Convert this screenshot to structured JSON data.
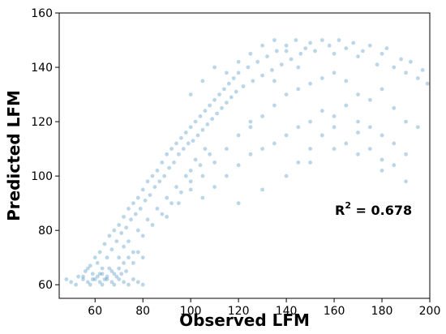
{
  "chart_data": {
    "type": "scatter",
    "title": "",
    "xlabel": "Observed LFM",
    "ylabel": "Predicted LFM",
    "xlim": [
      45,
      200
    ],
    "ylim": [
      55,
      160
    ],
    "x_ticks": [
      60,
      80,
      100,
      120,
      140,
      160,
      180,
      200
    ],
    "y_ticks": [
      60,
      80,
      100,
      120,
      140,
      160
    ],
    "grid": false,
    "legend": "none",
    "annotation": {
      "prefix": "R",
      "superscript": "2",
      "value_text": " = 0.678"
    },
    "marker_color": "#1f77b4",
    "marker_alpha": 0.3,
    "series": [
      {
        "points": [
          [
            50,
            61
          ],
          [
            52,
            60
          ],
          [
            55,
            62
          ],
          [
            57,
            61
          ],
          [
            58,
            60
          ],
          [
            60,
            62
          ],
          [
            62,
            61
          ],
          [
            63,
            60
          ],
          [
            65,
            63
          ],
          [
            67,
            61
          ],
          [
            68,
            60
          ],
          [
            70,
            62
          ],
          [
            72,
            61
          ],
          [
            74,
            60
          ],
          [
            76,
            62
          ],
          [
            78,
            61
          ],
          [
            80,
            60
          ],
          [
            48,
            62
          ],
          [
            53,
            63
          ],
          [
            59,
            64
          ],
          [
            56,
            65
          ],
          [
            58,
            67
          ],
          [
            60,
            70
          ],
          [
            61,
            68
          ],
          [
            62,
            72
          ],
          [
            63,
            66
          ],
          [
            64,
            75
          ],
          [
            65,
            70
          ],
          [
            66,
            78
          ],
          [
            67,
            73
          ],
          [
            68,
            80
          ],
          [
            69,
            76
          ],
          [
            70,
            82
          ],
          [
            71,
            79
          ],
          [
            72,
            85
          ],
          [
            73,
            81
          ],
          [
            74,
            88
          ],
          [
            75,
            84
          ],
          [
            76,
            90
          ],
          [
            77,
            86
          ],
          [
            78,
            92
          ],
          [
            79,
            88
          ],
          [
            80,
            95
          ],
          [
            81,
            91
          ],
          [
            82,
            98
          ],
          [
            83,
            93
          ],
          [
            84,
            100
          ],
          [
            85,
            96
          ],
          [
            86,
            102
          ],
          [
            87,
            98
          ],
          [
            88,
            105
          ],
          [
            89,
            100
          ],
          [
            90,
            108
          ],
          [
            91,
            103
          ],
          [
            92,
            110
          ],
          [
            93,
            105
          ],
          [
            94,
            112
          ],
          [
            95,
            108
          ],
          [
            96,
            114
          ],
          [
            97,
            110
          ],
          [
            98,
            116
          ],
          [
            99,
            112
          ],
          [
            100,
            118
          ],
          [
            101,
            113
          ],
          [
            102,
            120
          ],
          [
            103,
            115
          ],
          [
            104,
            122
          ],
          [
            105,
            117
          ],
          [
            106,
            124
          ],
          [
            107,
            119
          ],
          [
            108,
            126
          ],
          [
            109,
            121
          ],
          [
            110,
            128
          ],
          [
            111,
            123
          ],
          [
            112,
            130
          ],
          [
            113,
            125
          ],
          [
            114,
            132
          ],
          [
            115,
            127
          ],
          [
            116,
            134
          ],
          [
            117,
            129
          ],
          [
            118,
            136
          ],
          [
            119,
            131
          ],
          [
            120,
            138
          ],
          [
            122,
            133
          ],
          [
            124,
            140
          ],
          [
            126,
            135
          ],
          [
            128,
            142
          ],
          [
            130,
            137
          ],
          [
            132,
            144
          ],
          [
            134,
            139
          ],
          [
            136,
            146
          ],
          [
            138,
            141
          ],
          [
            140,
            148
          ],
          [
            142,
            143
          ],
          [
            144,
            150
          ],
          [
            146,
            145
          ],
          [
            148,
            147
          ],
          [
            150,
            149
          ],
          [
            152,
            146
          ],
          [
            155,
            150
          ],
          [
            158,
            148
          ],
          [
            160,
            145
          ],
          [
            162,
            150
          ],
          [
            165,
            147
          ],
          [
            168,
            149
          ],
          [
            170,
            144
          ],
          [
            172,
            146
          ],
          [
            175,
            148
          ],
          [
            178,
            141
          ],
          [
            180,
            145
          ],
          [
            182,
            147
          ],
          [
            185,
            140
          ],
          [
            188,
            143
          ],
          [
            190,
            138
          ],
          [
            192,
            142
          ],
          [
            195,
            136
          ],
          [
            197,
            139
          ],
          [
            199,
            134
          ],
          [
            100,
            95
          ],
          [
            105,
            100
          ],
          [
            110,
            105
          ],
          [
            115,
            110
          ],
          [
            120,
            115
          ],
          [
            125,
            118
          ],
          [
            130,
            122
          ],
          [
            135,
            126
          ],
          [
            140,
            130
          ],
          [
            145,
            132
          ],
          [
            150,
            134
          ],
          [
            155,
            136
          ],
          [
            160,
            138
          ],
          [
            165,
            135
          ],
          [
            170,
            130
          ],
          [
            175,
            128
          ],
          [
            180,
            132
          ],
          [
            185,
            125
          ],
          [
            190,
            120
          ],
          [
            195,
            118
          ],
          [
            90,
            85
          ],
          [
            95,
            90
          ],
          [
            100,
            98
          ],
          [
            105,
            92
          ],
          [
            110,
            96
          ],
          [
            115,
            100
          ],
          [
            120,
            104
          ],
          [
            125,
            108
          ],
          [
            130,
            110
          ],
          [
            135,
            112
          ],
          [
            140,
            115
          ],
          [
            145,
            118
          ],
          [
            150,
            120
          ],
          [
            155,
            124
          ],
          [
            160,
            122
          ],
          [
            165,
            126
          ],
          [
            170,
            120
          ],
          [
            175,
            118
          ],
          [
            180,
            115
          ],
          [
            185,
            112
          ],
          [
            120,
            90
          ],
          [
            130,
            95
          ],
          [
            140,
            100
          ],
          [
            150,
            105
          ],
          [
            160,
            110
          ],
          [
            170,
            108
          ],
          [
            180,
            102
          ],
          [
            190,
            98
          ],
          [
            125,
            120
          ],
          [
            135,
            135
          ],
          [
            70,
            70
          ],
          [
            72,
            74
          ],
          [
            74,
            76
          ],
          [
            76,
            72
          ],
          [
            78,
            80
          ],
          [
            80,
            78
          ],
          [
            82,
            84
          ],
          [
            84,
            82
          ],
          [
            86,
            88
          ],
          [
            88,
            86
          ],
          [
            90,
            92
          ],
          [
            92,
            90
          ],
          [
            94,
            96
          ],
          [
            96,
            94
          ],
          [
            98,
            100
          ],
          [
            100,
            102
          ],
          [
            102,
            106
          ],
          [
            104,
            104
          ],
          [
            106,
            110
          ],
          [
            108,
            108
          ],
          [
            62,
            64
          ],
          [
            64,
            62
          ],
          [
            66,
            66
          ],
          [
            68,
            64
          ],
          [
            70,
            66
          ],
          [
            72,
            68
          ],
          [
            74,
            70
          ],
          [
            76,
            68
          ],
          [
            78,
            72
          ],
          [
            80,
            70
          ],
          [
            55,
            63
          ],
          [
            57,
            66
          ],
          [
            59,
            62
          ],
          [
            61,
            63
          ],
          [
            63,
            64
          ],
          [
            65,
            62
          ],
          [
            67,
            65
          ],
          [
            69,
            63
          ],
          [
            71,
            64
          ],
          [
            73,
            65
          ],
          [
            145,
            105
          ],
          [
            150,
            110
          ],
          [
            155,
            115
          ],
          [
            160,
            118
          ],
          [
            165,
            112
          ],
          [
            170,
            116
          ],
          [
            175,
            110
          ],
          [
            180,
            106
          ],
          [
            185,
            104
          ],
          [
            190,
            108
          ],
          [
            100,
            130
          ],
          [
            105,
            135
          ],
          [
            110,
            140
          ],
          [
            115,
            138
          ],
          [
            120,
            142
          ],
          [
            125,
            145
          ],
          [
            130,
            148
          ],
          [
            135,
            150
          ],
          [
            140,
            146
          ],
          [
            145,
            140
          ]
        ]
      }
    ]
  }
}
